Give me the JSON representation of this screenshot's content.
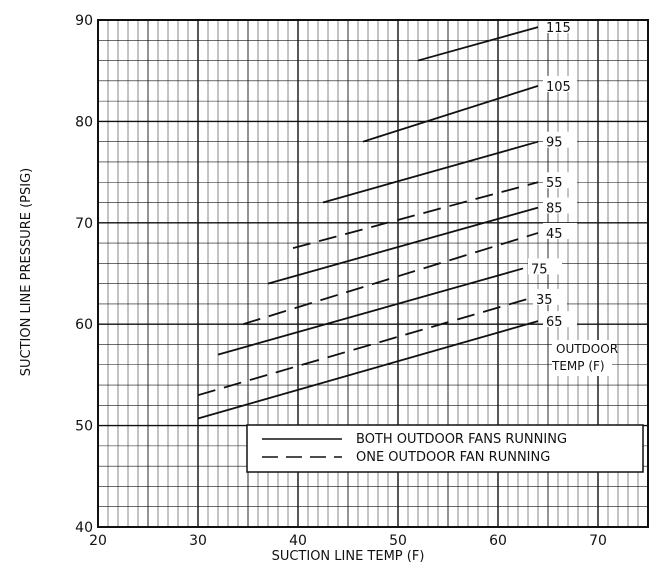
{
  "chart_data": {
    "type": "line",
    "xlabel": "SUCTION LINE TEMP (F)",
    "ylabel": "SUCTION LINE PRESSURE (PSIG)",
    "xlim": [
      20,
      75
    ],
    "ylim": [
      40,
      90
    ],
    "x_ticks": [
      20,
      30,
      40,
      50,
      60,
      70
    ],
    "y_ticks": [
      40,
      50,
      60,
      70,
      80,
      90
    ],
    "grid": true,
    "curve_label_title": [
      "OUTDOOR",
      "TEMP (F)"
    ],
    "legend": {
      "placement": "bottom-center",
      "entries": [
        {
          "label": "BOTH OUTDOOR FANS RUNNING",
          "style": "solid"
        },
        {
          "label": "ONE OUTDOOR FAN RUNNING",
          "style": "dashed"
        }
      ]
    },
    "series": [
      {
        "name": "115",
        "style": "solid",
        "x": [
          52,
          64
        ],
        "y": [
          86,
          89.3
        ]
      },
      {
        "name": "105",
        "style": "solid",
        "x": [
          46.5,
          64
        ],
        "y": [
          78,
          83.5
        ]
      },
      {
        "name": "95",
        "style": "solid",
        "x": [
          42.5,
          64
        ],
        "y": [
          72,
          78
        ]
      },
      {
        "name": "55",
        "style": "dashed",
        "x": [
          39.5,
          64
        ],
        "y": [
          67.5,
          74
        ]
      },
      {
        "name": "85",
        "style": "solid",
        "x": [
          37,
          64
        ],
        "y": [
          64,
          71.5
        ]
      },
      {
        "name": "45",
        "style": "dashed",
        "x": [
          34.5,
          64
        ],
        "y": [
          60,
          69
        ]
      },
      {
        "name": "75",
        "style": "solid",
        "x": [
          32,
          62.5
        ],
        "y": [
          57,
          65.5
        ]
      },
      {
        "name": "35",
        "style": "dashed",
        "x": [
          30,
          63
        ],
        "y": [
          53,
          62.5
        ]
      },
      {
        "name": "65",
        "style": "solid",
        "x": [
          30,
          64
        ],
        "y": [
          50.7,
          60.3
        ]
      }
    ]
  }
}
